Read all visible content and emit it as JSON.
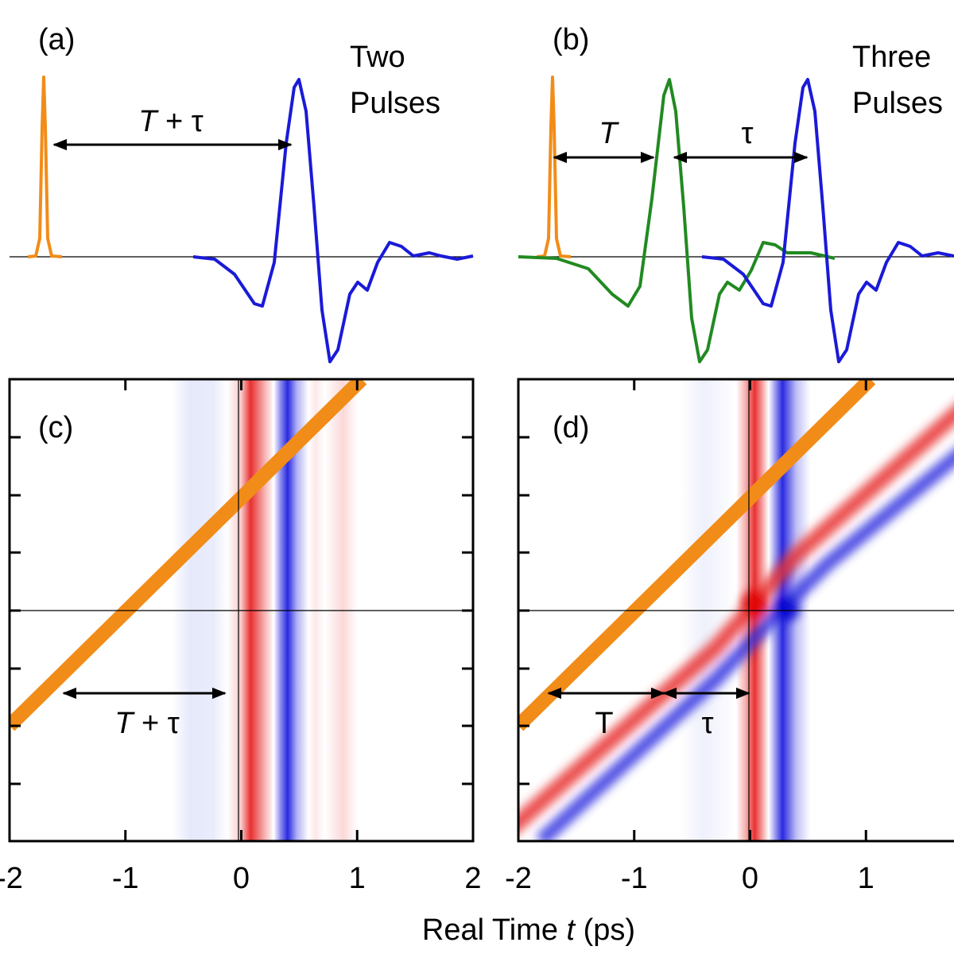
{
  "panel_a": {
    "label": "(a)",
    "caption_line1": "Two",
    "caption_line2": "Pulses",
    "delay_T": "T",
    "delay_rest": "+ τ"
  },
  "panel_b": {
    "label": "(b)",
    "caption_line1": "Three",
    "caption_line2": "Pulses",
    "delay_T": "T",
    "delay_tau": "τ"
  },
  "panel_c": {
    "label": "(c)",
    "delay_T": "T",
    "delay_rest": "+ τ"
  },
  "panel_d": {
    "label": "(d)",
    "delay_T": "T",
    "delay_tau": "τ"
  },
  "x_axis": {
    "title_pre": "Real Time",
    "title_var": "t",
    "title_post": "(ps)",
    "ticks_c": [
      -2,
      -1,
      0,
      1,
      2
    ],
    "ticks_d": [
      -2,
      -1,
      0,
      1
    ]
  }
}
